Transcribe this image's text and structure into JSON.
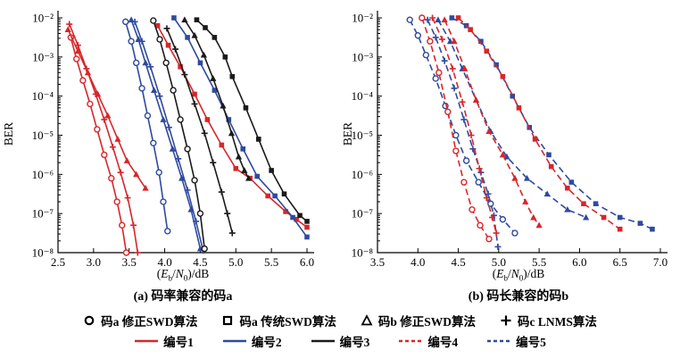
{
  "figure": {
    "background": "#ffffff",
    "colors": {
      "red": "#d8262a",
      "blue": "#2e4a9e",
      "black": "#1a1a1a"
    }
  },
  "legend": {
    "marker_items": [
      {
        "shape": "circle",
        "label": "码a 修正SWD算法"
      },
      {
        "shape": "square",
        "label": "码a 传统SWD算法"
      },
      {
        "shape": "triangle",
        "label": "码b 修正SWD算法"
      },
      {
        "shape": "plus",
        "label": "码c LNMS算法"
      }
    ],
    "line_items": [
      {
        "style": "solid",
        "color": "#d8262a",
        "label": "编号1"
      },
      {
        "style": "solid",
        "color": "#2e4a9e",
        "label": "编号2"
      },
      {
        "style": "solid",
        "color": "#1a1a1a",
        "label": "编号3"
      },
      {
        "style": "dashed",
        "color": "#d8262a",
        "label": "编号4"
      },
      {
        "style": "dashed",
        "color": "#2e4a9e",
        "label": "编号5"
      }
    ]
  },
  "chart_data": [
    {
      "type": "line",
      "title": "(a) 码率兼容的码a",
      "xlabel": "(Eb/N0)/dB",
      "ylabel": "BER",
      "xlim": [
        2.5,
        6.0
      ],
      "xticks": [
        2.5,
        3.0,
        3.5,
        4.0,
        4.5,
        5.0,
        5.5,
        6.0
      ],
      "yscale": "log",
      "ylog_exponents": [
        -2,
        -3,
        -4,
        -5,
        -6,
        -7,
        -8
      ],
      "grid": false,
      "series": [
        {
          "id": "a-no1-circle",
          "name": "编号1 码a修正SWD算法",
          "color": "#d8262a",
          "dash": false,
          "marker": "circle",
          "points": [
            [
              2.68,
              -2.5
            ],
            [
              2.76,
              -3.05
            ],
            [
              2.85,
              -3.6
            ],
            [
              2.95,
              -4.2
            ],
            [
              3.05,
              -4.85
            ],
            [
              3.15,
              -5.5
            ],
            [
              3.25,
              -6.1
            ],
            [
              3.33,
              -6.7
            ],
            [
              3.4,
              -7.3
            ],
            [
              3.46,
              -8.0
            ]
          ]
        },
        {
          "id": "a-no1-plus",
          "name": "编号1 码c LNMS算法",
          "color": "#d8262a",
          "dash": false,
          "marker": "plus",
          "points": [
            [
              2.66,
              -2.16
            ],
            [
              2.78,
              -2.7
            ],
            [
              2.9,
              -3.3
            ],
            [
              3.03,
              -3.95
            ],
            [
              3.15,
              -4.6
            ],
            [
              3.27,
              -5.3
            ],
            [
              3.38,
              -5.95
            ],
            [
              3.48,
              -6.6
            ],
            [
              3.56,
              -7.3
            ],
            [
              3.62,
              -8.0
            ]
          ]
        },
        {
          "id": "a-no1-triangle",
          "name": "编号1 码b修正SWD算法",
          "color": "#d8262a",
          "dash": false,
          "marker": "triangle",
          "points": [
            [
              2.64,
              -2.3
            ],
            [
              2.78,
              -2.85
            ],
            [
              2.92,
              -3.4
            ],
            [
              3.06,
              -3.95
            ],
            [
              3.2,
              -4.5
            ],
            [
              3.34,
              -5.1
            ],
            [
              3.47,
              -5.65
            ],
            [
              3.6,
              -6.0
            ],
            [
              3.73,
              -6.35
            ]
          ]
        },
        {
          "id": "a-no1-square",
          "name": "编号1 码a传统SWD算法",
          "color": "#d8262a",
          "dash": false,
          "marker": "square",
          "points": [
            [
              3.9,
              -2.2
            ],
            [
              4.05,
              -2.7
            ],
            [
              4.22,
              -3.25
            ],
            [
              4.42,
              -3.95
            ],
            [
              4.6,
              -4.6
            ],
            [
              4.8,
              -5.25
            ],
            [
              5.0,
              -5.85
            ],
            [
              5.2,
              -6.1
            ],
            [
              5.45,
              -6.55
            ],
            [
              5.7,
              -6.95
            ],
            [
              5.85,
              -7.15
            ],
            [
              6.0,
              -7.35
            ]
          ]
        },
        {
          "id": "a-no2-circle",
          "name": "编号2 码a修正SWD算法",
          "color": "#2e4a9e",
          "dash": false,
          "marker": "circle",
          "points": [
            [
              3.45,
              -2.1
            ],
            [
              3.53,
              -2.6
            ],
            [
              3.6,
              -3.15
            ],
            [
              3.68,
              -3.8
            ],
            [
              3.76,
              -4.5
            ],
            [
              3.84,
              -5.2
            ],
            [
              3.92,
              -5.95
            ],
            [
              3.98,
              -6.7
            ],
            [
              4.04,
              -7.45
            ]
          ]
        },
        {
          "id": "a-no2-triangle",
          "name": "编号2 码b修正SWD算法",
          "color": "#2e4a9e",
          "dash": false,
          "marker": "triangle",
          "points": [
            [
              3.53,
              -2.05
            ],
            [
              3.63,
              -2.55
            ],
            [
              3.73,
              -3.15
            ],
            [
              3.85,
              -3.85
            ],
            [
              3.98,
              -4.6
            ],
            [
              4.11,
              -5.35
            ],
            [
              4.24,
              -6.1
            ],
            [
              4.37,
              -6.9
            ],
            [
              4.5,
              -7.9
            ]
          ]
        },
        {
          "id": "a-no2-plus",
          "name": "编号2 码c LNMS算法",
          "color": "#2e4a9e",
          "dash": false,
          "marker": "plus",
          "points": [
            [
              3.58,
              -2.1
            ],
            [
              3.68,
              -2.6
            ],
            [
              3.8,
              -3.25
            ],
            [
              3.93,
              -4.0
            ],
            [
              4.06,
              -4.8
            ],
            [
              4.19,
              -5.6
            ],
            [
              4.32,
              -6.4
            ],
            [
              4.44,
              -7.2
            ],
            [
              4.54,
              -7.95
            ]
          ]
        },
        {
          "id": "a-no2-square",
          "name": "编号2 码a传统SWD算法",
          "color": "#2e4a9e",
          "dash": false,
          "marker": "square",
          "points": [
            [
              4.13,
              -2.0
            ],
            [
              4.32,
              -2.5
            ],
            [
              4.5,
              -3.15
            ],
            [
              4.7,
              -3.85
            ],
            [
              4.9,
              -4.6
            ],
            [
              5.1,
              -5.35
            ],
            [
              5.3,
              -6.05
            ],
            [
              5.55,
              -6.55
            ],
            [
              5.8,
              -7.1
            ],
            [
              6.0,
              -7.6
            ]
          ]
        },
        {
          "id": "a-no3-circle",
          "name": "编号3 码a修正SWD算法",
          "color": "#1a1a1a",
          "dash": false,
          "marker": "circle",
          "points": [
            [
              3.84,
              -2.07
            ],
            [
              3.93,
              -2.55
            ],
            [
              4.02,
              -3.15
            ],
            [
              4.12,
              -3.85
            ],
            [
              4.22,
              -4.6
            ],
            [
              4.32,
              -5.35
            ],
            [
              4.42,
              -6.15
            ],
            [
              4.5,
              -7.0
            ],
            [
              4.56,
              -7.9
            ]
          ]
        },
        {
          "id": "a-no3-plus",
          "name": "编号3 码c LNMS算法",
          "color": "#1a1a1a",
          "dash": false,
          "marker": "plus",
          "points": [
            [
              4.03,
              -2.27
            ],
            [
              4.15,
              -2.8
            ],
            [
              4.28,
              -3.45
            ],
            [
              4.42,
              -4.2
            ],
            [
              4.56,
              -4.95
            ],
            [
              4.68,
              -5.7
            ],
            [
              4.8,
              -6.45
            ],
            [
              4.88,
              -7.0
            ],
            [
              4.95,
              -7.5
            ]
          ]
        },
        {
          "id": "a-no3-triangle",
          "name": "编号3 码b修正SWD算法",
          "color": "#1a1a1a",
          "dash": false,
          "marker": "triangle",
          "points": [
            [
              4.28,
              -2.05
            ],
            [
              4.42,
              -2.45
            ],
            [
              4.55,
              -2.95
            ],
            [
              4.68,
              -3.55
            ],
            [
              4.82,
              -4.25
            ],
            [
              4.94,
              -4.95
            ],
            [
              5.04,
              -5.55
            ],
            [
              5.12,
              -5.9
            ],
            [
              5.18,
              -6.1
            ]
          ]
        },
        {
          "id": "a-no3-square",
          "name": "编号3 码a传统SWD算法",
          "color": "#1a1a1a",
          "dash": false,
          "marker": "square",
          "points": [
            [
              4.45,
              -2.05
            ],
            [
              4.57,
              -2.25
            ],
            [
              4.7,
              -2.5
            ],
            [
              4.85,
              -3.0
            ],
            [
              4.95,
              -3.5
            ],
            [
              5.14,
              -4.3
            ],
            [
              5.32,
              -5.1
            ],
            [
              5.5,
              -5.9
            ],
            [
              5.68,
              -6.5
            ],
            [
              5.9,
              -7.05
            ],
            [
              6.0,
              -7.2
            ]
          ]
        }
      ]
    },
    {
      "type": "line",
      "title": "(b) 码长兼容的码b",
      "xlabel": "(Eb/N0)/dB",
      "ylabel": "BER",
      "xlim": [
        3.5,
        7.0
      ],
      "xticks": [
        3.5,
        4.0,
        4.5,
        5.0,
        5.5,
        6.0,
        6.5,
        7.0
      ],
      "yscale": "log",
      "ylog_exponents": [
        -2,
        -3,
        -4,
        -5,
        -6,
        -7,
        -8
      ],
      "grid": false,
      "series": [
        {
          "id": "b-no5-circle",
          "name": "编号5 码a修正SWD算法",
          "color": "#2e4a9e",
          "dash": true,
          "marker": "circle",
          "points": [
            [
              3.9,
              -2.05
            ],
            [
              4.0,
              -2.45
            ],
            [
              4.1,
              -2.95
            ],
            [
              4.22,
              -3.55
            ],
            [
              4.34,
              -4.25
            ],
            [
              4.47,
              -5.0
            ],
            [
              4.6,
              -5.65
            ],
            [
              4.75,
              -6.2
            ],
            [
              4.9,
              -6.75
            ],
            [
              5.05,
              -7.15
            ],
            [
              5.2,
              -7.5
            ]
          ]
        },
        {
          "id": "b-no5-plus",
          "name": "编号5 码c LNMS算法",
          "color": "#2e4a9e",
          "dash": true,
          "marker": "plus",
          "points": [
            [
              4.12,
              -2.05
            ],
            [
              4.22,
              -2.5
            ],
            [
              4.33,
              -3.1
            ],
            [
              4.45,
              -3.8
            ],
            [
              4.57,
              -4.6
            ],
            [
              4.68,
              -5.35
            ],
            [
              4.78,
              -5.95
            ],
            [
              4.87,
              -6.5
            ],
            [
              4.94,
              -7.05
            ],
            [
              4.99,
              -7.85
            ]
          ]
        },
        {
          "id": "b-no5-triangle",
          "name": "编号5 码b修正SWD算法",
          "color": "#2e4a9e",
          "dash": true,
          "marker": "triangle",
          "points": [
            [
              4.25,
              -2.05
            ],
            [
              4.4,
              -2.6
            ],
            [
              4.55,
              -3.3
            ],
            [
              4.72,
              -4.1
            ],
            [
              4.9,
              -4.9
            ],
            [
              5.1,
              -5.55
            ],
            [
              5.35,
              -6.1
            ],
            [
              5.6,
              -6.5
            ],
            [
              5.85,
              -6.9
            ],
            [
              6.08,
              -7.1
            ]
          ]
        },
        {
          "id": "b-no5-square",
          "name": "编号5 码a传统SWD算法",
          "color": "#2e4a9e",
          "dash": true,
          "marker": "square",
          "points": [
            [
              4.42,
              -2.0
            ],
            [
              4.6,
              -2.2
            ],
            [
              4.78,
              -2.6
            ],
            [
              4.97,
              -3.2
            ],
            [
              5.17,
              -4.0
            ],
            [
              5.38,
              -4.8
            ],
            [
              5.62,
              -5.5
            ],
            [
              5.9,
              -6.2
            ],
            [
              6.2,
              -6.75
            ],
            [
              6.5,
              -7.1
            ],
            [
              6.75,
              -7.25
            ],
            [
              6.9,
              -7.4
            ]
          ]
        },
        {
          "id": "b-no4-circle",
          "name": "编号4 码a修正SWD算法",
          "color": "#d8262a",
          "dash": true,
          "marker": "circle",
          "points": [
            [
              4.05,
              -2.0
            ],
            [
              4.15,
              -2.6
            ],
            [
              4.26,
              -3.4
            ],
            [
              4.37,
              -4.4
            ],
            [
              4.47,
              -5.4
            ],
            [
              4.57,
              -6.2
            ],
            [
              4.67,
              -6.9
            ],
            [
              4.77,
              -7.3
            ],
            [
              4.88,
              -7.65
            ]
          ]
        },
        {
          "id": "b-no4-plus",
          "name": "编号4 码c LNMS算法",
          "color": "#d8262a",
          "dash": true,
          "marker": "plus",
          "points": [
            [
              4.18,
              -2.0
            ],
            [
              4.3,
              -2.55
            ],
            [
              4.43,
              -3.3
            ],
            [
              4.55,
              -4.15
            ],
            [
              4.66,
              -5.0
            ],
            [
              4.76,
              -5.85
            ],
            [
              4.85,
              -6.6
            ],
            [
              4.92,
              -7.1
            ],
            [
              4.97,
              -7.5
            ]
          ]
        },
        {
          "id": "b-no4-triangle",
          "name": "编号4 码b修正SWD算法",
          "color": "#d8262a",
          "dash": true,
          "marker": "triangle",
          "points": [
            [
              4.33,
              -2.05
            ],
            [
              4.45,
              -2.6
            ],
            [
              4.58,
              -3.3
            ],
            [
              4.72,
              -4.1
            ],
            [
              4.88,
              -4.9
            ],
            [
              5.05,
              -5.5
            ],
            [
              5.2,
              -6.1
            ],
            [
              5.33,
              -6.7
            ],
            [
              5.43,
              -7.1
            ],
            [
              5.5,
              -7.3
            ]
          ]
        },
        {
          "id": "b-no4-square",
          "name": "编号4 码a传统SWD算法",
          "color": "#d8262a",
          "dash": true,
          "marker": "square",
          "points": [
            [
              4.5,
              -2.0
            ],
            [
              4.65,
              -2.3
            ],
            [
              4.85,
              -2.85
            ],
            [
              5.05,
              -3.5
            ],
            [
              5.25,
              -4.3
            ],
            [
              5.45,
              -5.1
            ],
            [
              5.65,
              -5.8
            ],
            [
              5.85,
              -6.35
            ],
            [
              6.05,
              -6.75
            ],
            [
              6.3,
              -7.1
            ],
            [
              6.5,
              -7.4
            ]
          ]
        }
      ]
    }
  ]
}
